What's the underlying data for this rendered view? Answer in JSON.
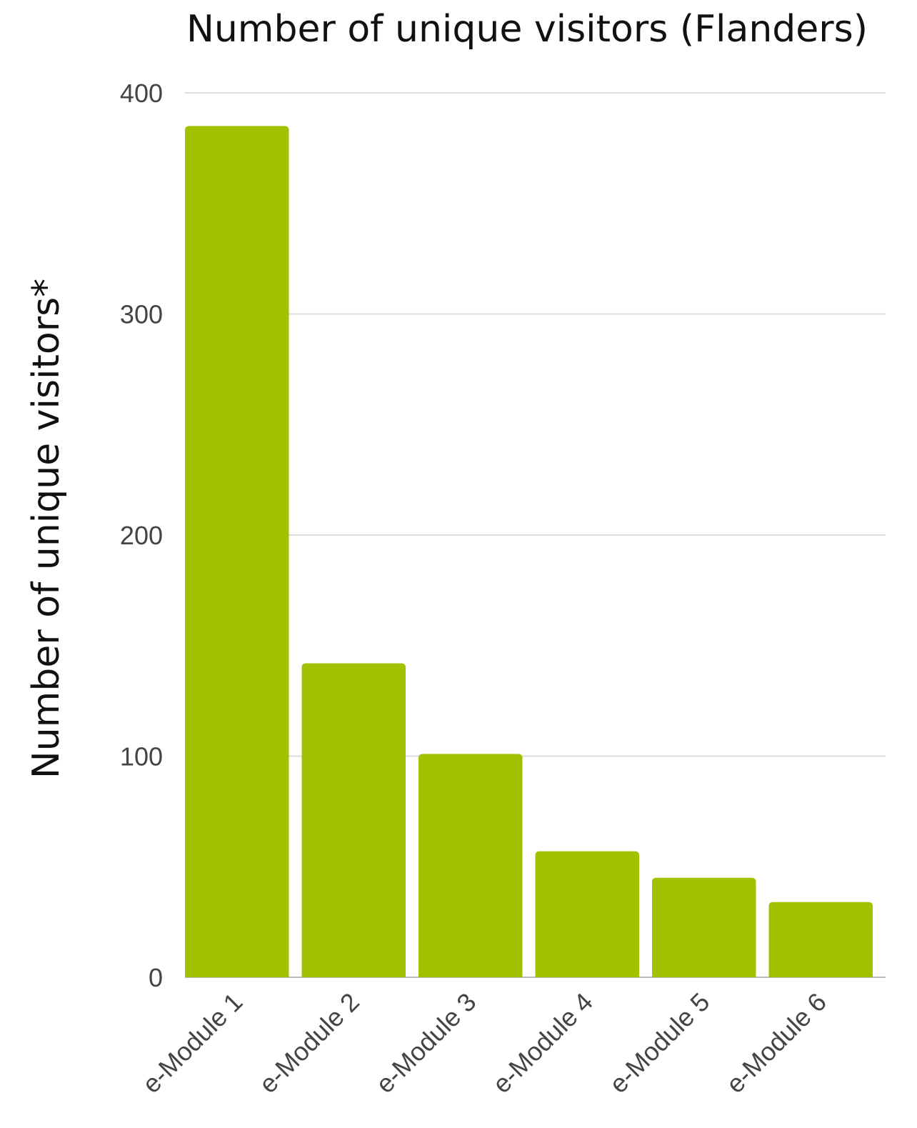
{
  "chart_data": {
    "type": "bar",
    "title": "Number of unique visitors (Flanders)",
    "xlabel": "",
    "ylabel": "Number of unique visitors*",
    "categories": [
      "e-Module 1",
      "e-Module 2",
      "e-Module 3",
      "e-Module 4",
      "e-Module 5",
      "e-Module 6"
    ],
    "values": [
      385,
      142,
      101,
      57,
      45,
      34
    ],
    "ylim": [
      0,
      400
    ],
    "yticks": [
      "0",
      "100",
      "200",
      "300",
      "400"
    ],
    "grid": true,
    "legend": "none",
    "bar_color": "#a3c100"
  }
}
